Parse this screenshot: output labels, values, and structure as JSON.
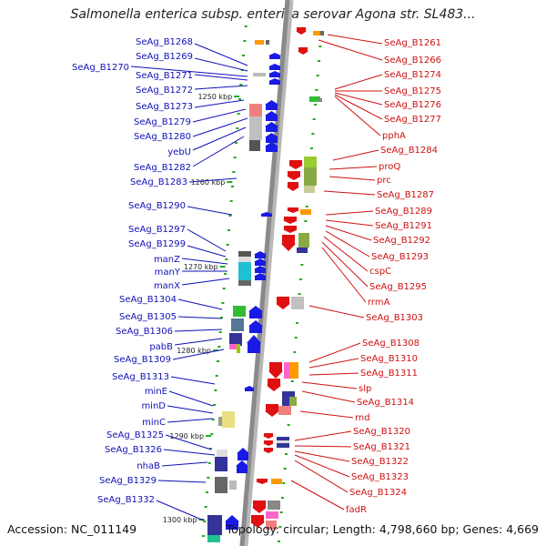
{
  "title": "Salmonella enterica subsp. enterica serovar Agona str. SL483...",
  "footer": {
    "accession": "Accession: NC_011149",
    "summary": "Topology: circular; Length: 4,798,660 bp; Genes: 4,669"
  },
  "colors": {
    "forward_label": "#1010b8",
    "reverse_label": "#d01010",
    "forward_arrow": "#1a1ae6",
    "reverse_arrow": "#e01010",
    "backbone": "#8a8a8a"
  },
  "kbp_markers": [
    "1250 kbp",
    "1260 kbp",
    "1270 kbp",
    "1280 kbp",
    "1290 kbp",
    "1300 kbp"
  ],
  "left_genes": [
    "SeAg_B1268",
    "SeAg_B1269",
    "SeAg_B1270",
    "SeAg_B1271",
    "SeAg_B1272",
    "SeAg_B1273",
    "SeAg_B1279",
    "SeAg_B1280",
    "yebU",
    "SeAg_B1282",
    "SeAg_B1283",
    "SeAg_B1290",
    "SeAg_B1297",
    "SeAg_B1299",
    "manZ",
    "manY",
    "manX",
    "SeAg_B1304",
    "SeAg_B1305",
    "SeAg_B1306",
    "pabB",
    "SeAg_B1309",
    "SeAg_B1313",
    "minE",
    "minD",
    "minC",
    "SeAg_B1325",
    "SeAg_B1326",
    "nhaB",
    "SeAg_B1329",
    "SeAg_B1332"
  ],
  "right_genes": [
    "SeAg_B1261",
    "SeAg_B1266",
    "SeAg_B1274",
    "SeAg_B1275",
    "SeAg_B1276",
    "SeAg_B1277",
    "pphA",
    "SeAg_B1284",
    "proQ",
    "prc",
    "SeAg_B1287",
    "SeAg_B1289",
    "SeAg_B1291",
    "SeAg_B1292",
    "SeAg_B1293",
    "cspC",
    "SeAg_B1295",
    "rrmA",
    "SeAg_B1303",
    "SeAg_B1308",
    "SeAg_B1310",
    "SeAg_B1311",
    "slp",
    "SeAg_B1314",
    "rnd",
    "SeAg_B1320",
    "SeAg_B1321",
    "SeAg_B1322",
    "SeAg_B1323",
    "SeAg_B1324",
    "fadR"
  ]
}
